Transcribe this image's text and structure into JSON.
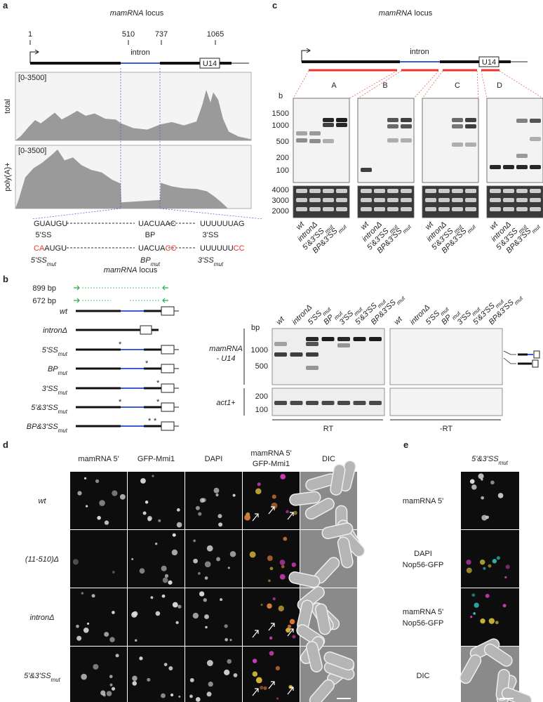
{
  "panel_a": {
    "letter": "a",
    "locus": {
      "gene": "mamRNA",
      "word": "locus"
    },
    "positions": [
      "1",
      "510",
      "737",
      "1065"
    ],
    "intron": "intron",
    "u14": "U14",
    "tracks": [
      {
        "range": "[0-3500]",
        "name": "total"
      },
      {
        "range": "[0-3500]",
        "name": "poly(A)+"
      }
    ],
    "wt_sequences": [
      "GUAUGU",
      "UACUAAC",
      "UUUUUUAG"
    ],
    "sites": [
      "5'SS",
      "BP",
      "3'SS"
    ],
    "mut_sequences": [
      [
        {
          "text": "CA",
          "mutated": true
        },
        {
          "text": "AUGU",
          "mutated": false
        }
      ],
      [
        {
          "text": "UACUA",
          "mutated": false
        },
        {
          "text": "CC",
          "mutated": true
        }
      ],
      [
        {
          "text": "UUUUUU",
          "mutated": false
        },
        {
          "text": "CC",
          "mutated": true
        }
      ]
    ],
    "mut_sites": [
      {
        "text": "5'SS",
        "sub": "mut"
      },
      {
        "text": "BP",
        "sub": "mut"
      },
      {
        "text": "3'SS",
        "sub": "mut"
      }
    ]
  },
  "panel_b": {
    "letter": "b",
    "locus": {
      "gene": "mamRNA",
      "word": "locus"
    },
    "primers": [
      "899 bp",
      "672 bp"
    ],
    "constructs": [
      {
        "text": "wt"
      },
      {
        "text": "intronΔ"
      },
      {
        "text": "5'SS",
        "sub": "mut"
      },
      {
        "text": "BP",
        "sub": "mut"
      },
      {
        "text": "3'SS",
        "sub": "mut"
      },
      {
        "text": "5'&3'SS",
        "sub": "mut"
      },
      {
        "text": "BP&3'SS",
        "sub": "mut"
      }
    ],
    "gel": {
      "unit": "bp",
      "main_label": [
        "mamRNA",
        "- U14"
      ],
      "main_ticks": [
        "1000",
        "500"
      ],
      "control_label": "act1+",
      "control_ticks": [
        "200",
        "100"
      ],
      "lanes": [
        {
          "text": "wt"
        },
        {
          "text": "intronΔ"
        },
        {
          "text": "5'SS",
          "sub": "mut"
        },
        {
          "text": "BP",
          "sub": "mut"
        },
        {
          "text": "3'SS",
          "sub": "mut"
        },
        {
          "text": "5'&3'SS",
          "sub": "mut"
        },
        {
          "text": "BP&3'SS",
          "sub": "mut"
        }
      ],
      "conditions": [
        "RT",
        "-RT"
      ]
    }
  },
  "panel_c": {
    "letter": "c",
    "locus": {
      "gene": "mamRNA",
      "word": "locus"
    },
    "intron": "intron",
    "u14": "U14",
    "fragments": [
      "A",
      "B",
      "C",
      "D"
    ],
    "unit": "b",
    "upper_ticks": [
      "1500",
      "1000",
      "500",
      "200",
      "100"
    ],
    "lower_ticks": [
      "4000",
      "3000",
      "2000"
    ],
    "lanes": [
      {
        "text": "wt"
      },
      {
        "text": "intronΔ"
      },
      {
        "text": "5'&3'SS",
        "sub": "mut"
      },
      {
        "text": "BP&3'SS",
        "sub": "mut"
      }
    ]
  },
  "panel_d": {
    "letter": "d",
    "columns": [
      [
        "mamRNA 5'"
      ],
      [
        "GFP-Mmi1"
      ],
      [
        "DAPI"
      ],
      [
        "mamRNA 5'",
        "GFP-Mmi1"
      ],
      [
        "DIC"
      ]
    ],
    "rows": [
      {
        "text": "wt"
      },
      {
        "text": "(11-510)Δ"
      },
      {
        "text": "intronΔ"
      },
      {
        "text": "5'&3'SS",
        "sub": "mut"
      }
    ]
  },
  "panel_e": {
    "letter": "e",
    "title": {
      "text": "5'&3'SS",
      "sub": "mut"
    },
    "rows": [
      [
        "mamRNA 5'"
      ],
      [
        "DAPI",
        "Nop56-GFP"
      ],
      [
        "mamRNA 5'",
        "Nop56-GFP"
      ],
      [
        "DIC"
      ]
    ]
  }
}
